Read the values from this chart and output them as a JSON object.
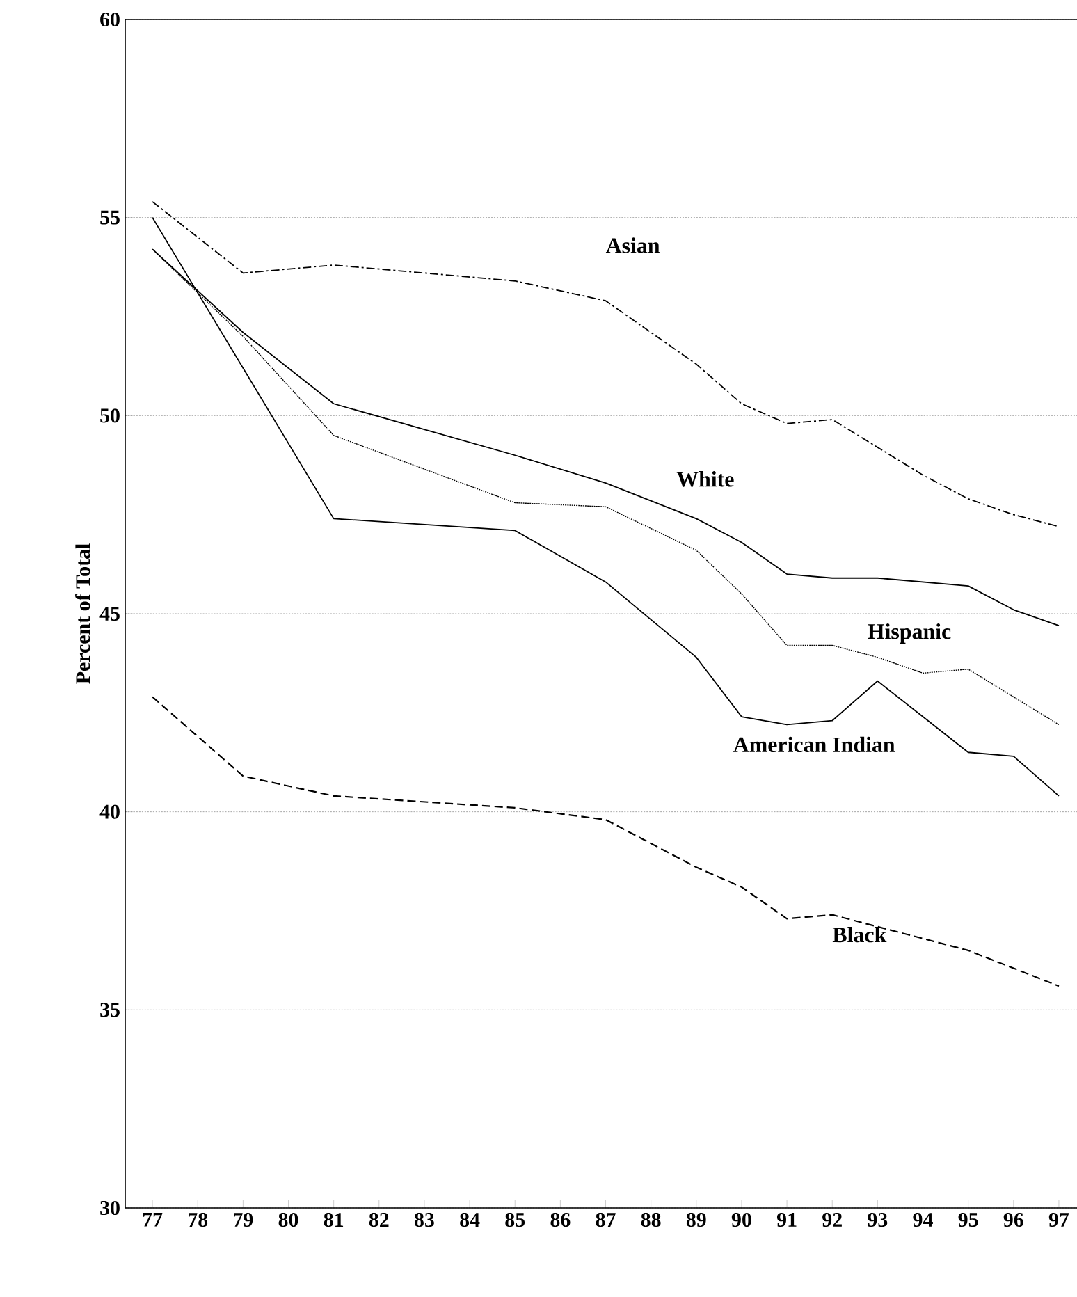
{
  "chart_data": {
    "type": "line",
    "ylabel": "Percent of Total",
    "xlim": [
      76.4,
      97.4
    ],
    "ylim": [
      30,
      60
    ],
    "xticks": [
      77,
      78,
      79,
      80,
      81,
      82,
      83,
      84,
      85,
      86,
      87,
      88,
      89,
      90,
      91,
      92,
      93,
      94,
      95,
      96,
      97
    ],
    "yticks": [
      30,
      35,
      40,
      45,
      50,
      55,
      60
    ],
    "grid": "y",
    "series": [
      {
        "name": "Asian",
        "color": "#000000",
        "line_style": "dashdot",
        "x": [
          77,
          79,
          81,
          85,
          87,
          89,
          90,
          91,
          92,
          93,
          94,
          95,
          96,
          97
        ],
        "values": [
          55.4,
          53.6,
          53.8,
          53.4,
          52.9,
          51.3,
          50.3,
          49.8,
          49.9,
          49.2,
          48.5,
          47.9,
          47.5,
          47.2
        ]
      },
      {
        "name": "White",
        "color": "#000000",
        "line_style": "solid",
        "x": [
          77,
          79,
          81,
          85,
          87,
          89,
          90,
          91,
          92,
          93,
          95,
          96,
          97
        ],
        "values": [
          54.2,
          52.1,
          50.3,
          49.0,
          48.3,
          47.4,
          46.8,
          46.0,
          45.9,
          45.9,
          45.7,
          45.1,
          44.7
        ]
      },
      {
        "name": "Hispanic",
        "color": "#000000",
        "line_style": "dotted",
        "x": [
          77,
          79,
          81,
          85,
          87,
          89,
          90,
          91,
          92,
          93,
          94,
          95,
          96,
          97
        ],
        "values": [
          54.2,
          52.0,
          49.5,
          47.8,
          47.7,
          46.6,
          45.5,
          44.2,
          44.2,
          43.9,
          43.5,
          43.6,
          42.9,
          42.2
        ]
      },
      {
        "name": "American Indian",
        "color": "#000000",
        "line_style": "solid",
        "x": [
          77,
          81,
          85,
          87,
          89,
          90,
          91,
          92,
          93,
          94,
          95,
          96,
          97
        ],
        "values": [
          55.0,
          47.4,
          47.1,
          45.8,
          43.9,
          42.4,
          42.2,
          42.3,
          43.3,
          42.4,
          41.5,
          41.4,
          40.4
        ]
      },
      {
        "name": "Black",
        "color": "#000000",
        "line_style": "dashed",
        "x": [
          77,
          79,
          81,
          85,
          87,
          89,
          90,
          91,
          92,
          93,
          95,
          97
        ],
        "values": [
          42.9,
          40.9,
          40.4,
          40.1,
          39.8,
          38.6,
          38.1,
          37.3,
          37.4,
          37.1,
          36.5,
          35.6
        ]
      }
    ]
  }
}
